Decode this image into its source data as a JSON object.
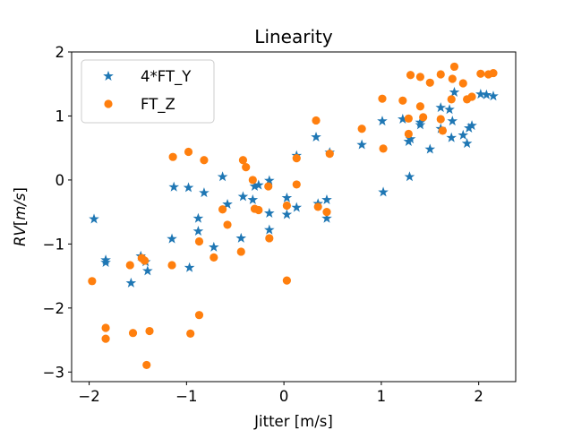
{
  "chart_data": {
    "type": "scatter",
    "title": "Linearity",
    "xlabel": "Jitter [m/s]",
    "ylabel": "RV [m/s]",
    "xlim": [
      -2.18,
      2.38
    ],
    "ylim": [
      -3.15,
      2.0
    ],
    "xticks": [
      -2,
      -1,
      0,
      1,
      2
    ],
    "yticks": [
      -3,
      -2,
      -1,
      0,
      1,
      2
    ],
    "xtick_labels": [
      "−2",
      "−1",
      "0",
      "1",
      "2"
    ],
    "ytick_labels": [
      "−3",
      "−2",
      "−1",
      "0",
      "1",
      "2"
    ],
    "grid": false,
    "legend_position": "upper-left",
    "series": [
      {
        "name": "4*FT_Y",
        "marker": "star",
        "color": "#1f77b4",
        "points": [
          [
            -1.95,
            -0.61
          ],
          [
            -1.83,
            -1.25
          ],
          [
            -1.83,
            -1.29
          ],
          [
            -1.57,
            -1.61
          ],
          [
            -1.47,
            -1.19
          ],
          [
            -1.42,
            -1.28
          ],
          [
            -1.4,
            -1.42
          ],
          [
            -1.15,
            -0.92
          ],
          [
            -1.13,
            -0.11
          ],
          [
            -0.98,
            -0.12
          ],
          [
            -0.97,
            -1.37
          ],
          [
            -0.88,
            -0.8
          ],
          [
            -0.88,
            -0.6
          ],
          [
            -0.82,
            -0.2
          ],
          [
            -0.72,
            -1.05
          ],
          [
            -0.63,
            0.05
          ],
          [
            -0.58,
            -0.38
          ],
          [
            -0.44,
            -0.91
          ],
          [
            -0.42,
            -0.26
          ],
          [
            -0.32,
            -0.31
          ],
          [
            -0.3,
            -0.1
          ],
          [
            -0.26,
            -0.08
          ],
          [
            -0.15,
            -0.52
          ],
          [
            -0.15,
            -0.01
          ],
          [
            -0.15,
            -0.78
          ],
          [
            0.03,
            -0.28
          ],
          [
            0.03,
            -0.54
          ],
          [
            0.13,
            -0.43
          ],
          [
            0.13,
            0.38
          ],
          [
            0.33,
            0.67
          ],
          [
            0.35,
            -0.37
          ],
          [
            0.44,
            -0.6
          ],
          [
            0.44,
            -0.31
          ],
          [
            0.47,
            0.43
          ],
          [
            0.8,
            0.55
          ],
          [
            1.01,
            0.92
          ],
          [
            1.02,
            -0.19
          ],
          [
            1.22,
            0.95
          ],
          [
            1.28,
            0.6
          ],
          [
            1.29,
            0.05
          ],
          [
            1.3,
            0.64
          ],
          [
            1.4,
            0.86
          ],
          [
            1.4,
            0.9
          ],
          [
            1.5,
            0.48
          ],
          [
            1.61,
            1.13
          ],
          [
            1.61,
            0.8
          ],
          [
            1.7,
            1.1
          ],
          [
            1.72,
            0.66
          ],
          [
            1.73,
            0.92
          ],
          [
            1.75,
            1.37
          ],
          [
            1.84,
            0.7
          ],
          [
            1.88,
            0.57
          ],
          [
            1.9,
            0.81
          ],
          [
            1.93,
            0.85
          ],
          [
            2.02,
            1.34
          ],
          [
            2.08,
            1.33
          ],
          [
            2.15,
            1.31
          ]
        ]
      },
      {
        "name": "FT_Z",
        "marker": "circle",
        "color": "#ff7f0e",
        "points": [
          [
            -1.97,
            -1.58
          ],
          [
            -1.83,
            -2.31
          ],
          [
            -1.83,
            -2.48
          ],
          [
            -1.58,
            -1.33
          ],
          [
            -1.55,
            -2.39
          ],
          [
            -1.46,
            -1.22
          ],
          [
            -1.43,
            -1.26
          ],
          [
            -1.41,
            -2.89
          ],
          [
            -1.38,
            -2.36
          ],
          [
            -1.15,
            -1.33
          ],
          [
            -1.14,
            0.36
          ],
          [
            -0.98,
            0.44
          ],
          [
            -0.96,
            -2.4
          ],
          [
            -0.87,
            -2.11
          ],
          [
            -0.87,
            -0.96
          ],
          [
            -0.82,
            0.31
          ],
          [
            -0.72,
            -1.21
          ],
          [
            -0.63,
            -0.46
          ],
          [
            -0.58,
            -0.7
          ],
          [
            -0.44,
            -1.12
          ],
          [
            -0.42,
            0.31
          ],
          [
            -0.39,
            0.2
          ],
          [
            -0.32,
            0.0
          ],
          [
            -0.3,
            -0.45
          ],
          [
            -0.26,
            -0.47
          ],
          [
            -0.16,
            -0.1
          ],
          [
            -0.15,
            -0.91
          ],
          [
            0.03,
            -1.57
          ],
          [
            0.03,
            -0.4
          ],
          [
            0.13,
            -0.07
          ],
          [
            0.13,
            0.34
          ],
          [
            0.33,
            0.93
          ],
          [
            0.35,
            -0.42
          ],
          [
            0.44,
            -0.5
          ],
          [
            0.47,
            0.41
          ],
          [
            0.8,
            0.8
          ],
          [
            1.01,
            1.27
          ],
          [
            1.02,
            0.49
          ],
          [
            1.22,
            1.24
          ],
          [
            1.28,
            0.96
          ],
          [
            1.28,
            0.72
          ],
          [
            1.3,
            1.64
          ],
          [
            1.4,
            1.61
          ],
          [
            1.4,
            1.15
          ],
          [
            1.43,
            0.98
          ],
          [
            1.5,
            1.52
          ],
          [
            1.61,
            1.65
          ],
          [
            1.61,
            0.95
          ],
          [
            1.63,
            0.77
          ],
          [
            1.72,
            1.26
          ],
          [
            1.73,
            1.58
          ],
          [
            1.75,
            1.77
          ],
          [
            1.84,
            1.51
          ],
          [
            1.88,
            1.26
          ],
          [
            1.93,
            1.3
          ],
          [
            2.02,
            1.66
          ],
          [
            2.1,
            1.65
          ],
          [
            2.15,
            1.67
          ]
        ]
      }
    ]
  }
}
